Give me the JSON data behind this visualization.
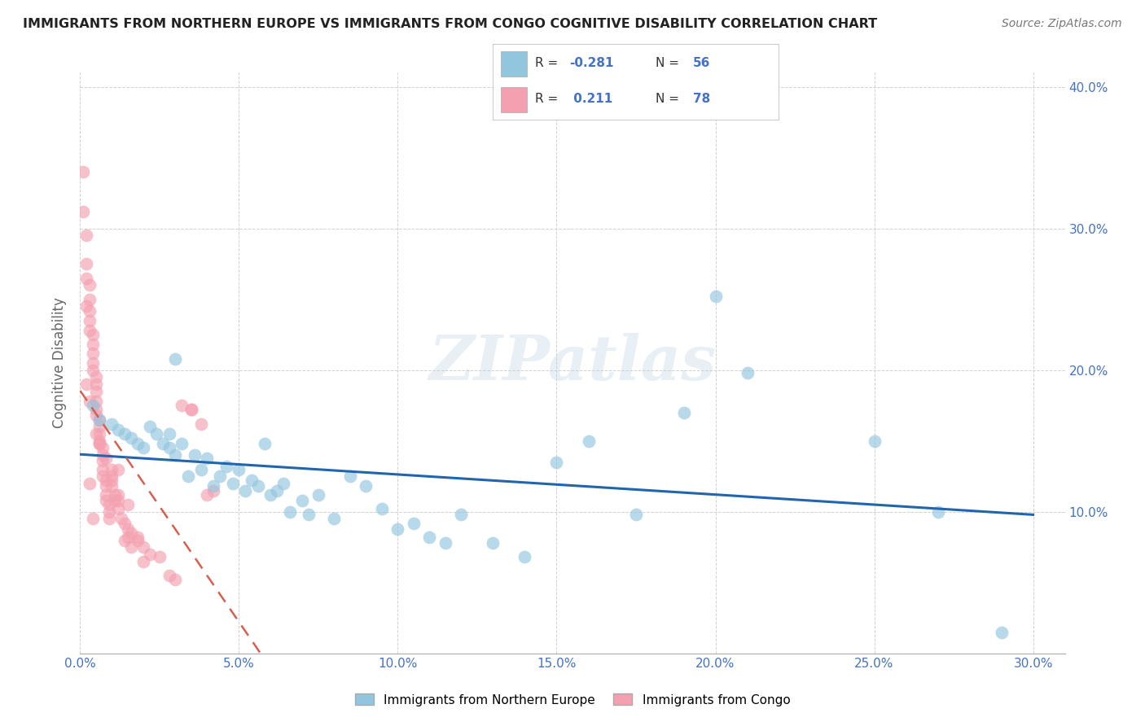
{
  "title": "IMMIGRANTS FROM NORTHERN EUROPE VS IMMIGRANTS FROM CONGO COGNITIVE DISABILITY CORRELATION CHART",
  "source": "Source: ZipAtlas.com",
  "ylabel": "Cognitive Disability",
  "legend_label1": "Immigrants from Northern Europe",
  "legend_label2": "Immigrants from Congo",
  "xlim": [
    0.0,
    0.31
  ],
  "ylim": [
    0.0,
    0.41
  ],
  "xtick_vals": [
    0.0,
    0.05,
    0.1,
    0.15,
    0.2,
    0.25,
    0.3
  ],
  "xtick_labels": [
    "0.0%",
    "5.0%",
    "10.0%",
    "15.0%",
    "20.0%",
    "25.0%",
    "30.0%"
  ],
  "ytick_vals": [
    0.0,
    0.1,
    0.2,
    0.3,
    0.4
  ],
  "ytick_labels": [
    "",
    "10.0%",
    "20.0%",
    "30.0%",
    "40.0%"
  ],
  "color_blue": "#92c5de",
  "color_pink": "#f4a0b0",
  "color_blue_line": "#2166ac",
  "color_pink_line": "#d6604d",
  "watermark": "ZIPatlas",
  "ne_x": [
    0.004,
    0.006,
    0.01,
    0.012,
    0.014,
    0.016,
    0.018,
    0.02,
    0.022,
    0.024,
    0.026,
    0.028,
    0.028,
    0.03,
    0.032,
    0.034,
    0.036,
    0.038,
    0.04,
    0.042,
    0.044,
    0.046,
    0.048,
    0.05,
    0.052,
    0.054,
    0.056,
    0.058,
    0.06,
    0.062,
    0.064,
    0.066,
    0.07,
    0.072,
    0.075,
    0.08,
    0.085,
    0.09,
    0.095,
    0.1,
    0.105,
    0.11,
    0.115,
    0.12,
    0.13,
    0.14,
    0.15,
    0.16,
    0.175,
    0.19,
    0.2,
    0.21,
    0.25,
    0.27,
    0.29,
    0.03
  ],
  "ne_y": [
    0.175,
    0.165,
    0.162,
    0.158,
    0.155,
    0.152,
    0.148,
    0.145,
    0.16,
    0.155,
    0.148,
    0.145,
    0.155,
    0.14,
    0.148,
    0.125,
    0.14,
    0.13,
    0.138,
    0.118,
    0.125,
    0.132,
    0.12,
    0.13,
    0.115,
    0.122,
    0.118,
    0.148,
    0.112,
    0.115,
    0.12,
    0.1,
    0.108,
    0.098,
    0.112,
    0.095,
    0.125,
    0.118,
    0.102,
    0.088,
    0.092,
    0.082,
    0.078,
    0.098,
    0.078,
    0.068,
    0.135,
    0.15,
    0.098,
    0.17,
    0.252,
    0.198,
    0.15,
    0.1,
    0.015,
    0.208
  ],
  "congo_x": [
    0.001,
    0.001,
    0.002,
    0.002,
    0.002,
    0.002,
    0.003,
    0.003,
    0.003,
    0.003,
    0.003,
    0.004,
    0.004,
    0.004,
    0.004,
    0.004,
    0.005,
    0.005,
    0.005,
    0.005,
    0.005,
    0.005,
    0.006,
    0.006,
    0.006,
    0.006,
    0.006,
    0.007,
    0.007,
    0.007,
    0.007,
    0.007,
    0.008,
    0.008,
    0.008,
    0.008,
    0.009,
    0.009,
    0.009,
    0.01,
    0.01,
    0.01,
    0.011,
    0.011,
    0.012,
    0.012,
    0.012,
    0.013,
    0.014,
    0.015,
    0.015,
    0.016,
    0.018,
    0.02,
    0.022,
    0.025,
    0.028,
    0.03,
    0.032,
    0.035,
    0.038,
    0.042,
    0.002,
    0.003,
    0.005,
    0.006,
    0.008,
    0.01,
    0.012,
    0.015,
    0.018,
    0.02,
    0.003,
    0.004,
    0.014,
    0.016,
    0.035,
    0.04
  ],
  "congo_y": [
    0.34,
    0.312,
    0.295,
    0.275,
    0.265,
    0.245,
    0.26,
    0.25,
    0.242,
    0.235,
    0.228,
    0.225,
    0.218,
    0.212,
    0.205,
    0.2,
    0.195,
    0.19,
    0.185,
    0.178,
    0.172,
    0.168,
    0.165,
    0.16,
    0.155,
    0.15,
    0.148,
    0.145,
    0.14,
    0.136,
    0.13,
    0.125,
    0.122,
    0.118,
    0.112,
    0.108,
    0.105,
    0.1,
    0.095,
    0.13,
    0.122,
    0.118,
    0.112,
    0.108,
    0.112,
    0.108,
    0.102,
    0.095,
    0.092,
    0.088,
    0.082,
    0.085,
    0.08,
    0.075,
    0.07,
    0.068,
    0.055,
    0.052,
    0.175,
    0.172,
    0.162,
    0.115,
    0.19,
    0.178,
    0.155,
    0.148,
    0.138,
    0.125,
    0.13,
    0.105,
    0.082,
    0.065,
    0.12,
    0.095,
    0.08,
    0.075,
    0.172,
    0.112
  ]
}
